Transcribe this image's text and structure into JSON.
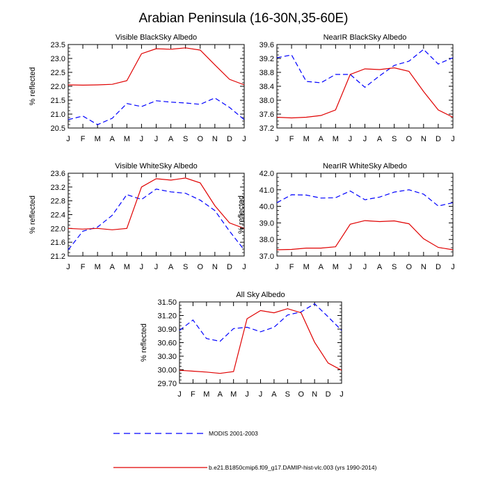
{
  "title": "Arabian Peninsula (16-30N,35-60E)",
  "colors": {
    "modis": "#0000ff",
    "model": "#e00000"
  },
  "legend": {
    "modis_label": "MODIS 2001-2003",
    "model_label": "b.e21.B1850cmip6.f09_g17.DAMIP-hist-vlc.003 (yrs 1990-2014)"
  },
  "chart_data": [
    {
      "type": "line",
      "title": "Visible BlackSky Albedo",
      "ylabel": "% reflected",
      "categories": [
        "J",
        "F",
        "M",
        "A",
        "M",
        "J",
        "J",
        "A",
        "S",
        "O",
        "N",
        "D",
        "J"
      ],
      "ylim": [
        20.5,
        23.5
      ],
      "yticks": [
        "20.5",
        "21.0",
        "21.5",
        "22.0",
        "22.5",
        "23.0",
        "23.5"
      ],
      "series": [
        {
          "name": "MODIS 2001-2003",
          "values": [
            20.8,
            20.93,
            20.62,
            20.85,
            21.38,
            21.27,
            21.48,
            21.43,
            21.4,
            21.35,
            21.58,
            21.24,
            20.8
          ]
        },
        {
          "name": "b.e21.B1850cmip6.f09_g17.DAMIP-hist-vlc.003 (yrs 1990-2014)",
          "values": [
            22.05,
            22.04,
            22.05,
            22.07,
            22.2,
            23.17,
            23.35,
            23.33,
            23.38,
            23.3,
            22.77,
            22.25,
            22.05
          ]
        }
      ]
    },
    {
      "type": "line",
      "title": "NearIR BlackSky Albedo",
      "ylabel": "",
      "categories": [
        "J",
        "F",
        "M",
        "A",
        "M",
        "J",
        "J",
        "A",
        "S",
        "O",
        "N",
        "D",
        "J"
      ],
      "ylim": [
        37.2,
        39.6
      ],
      "yticks": [
        "37.2",
        "37.6",
        "38.0",
        "38.4",
        "38.8",
        "39.2",
        "39.6"
      ],
      "series": [
        {
          "name": "MODIS 2001-2003",
          "values": [
            39.22,
            39.3,
            38.54,
            38.5,
            38.74,
            38.74,
            38.37,
            38.7,
            39.0,
            39.12,
            39.46,
            39.04,
            39.22
          ]
        },
        {
          "name": "b.e21.B1850cmip6.f09_g17.DAMIP-hist-vlc.003 (yrs 1990-2014)",
          "values": [
            37.51,
            37.49,
            37.51,
            37.56,
            37.72,
            38.74,
            38.9,
            38.88,
            38.93,
            38.83,
            38.25,
            37.72,
            37.51
          ]
        }
      ]
    },
    {
      "type": "line",
      "title": "Visible WhiteSky Albedo",
      "ylabel": "% reflected",
      "categories": [
        "J",
        "F",
        "M",
        "A",
        "M",
        "J",
        "J",
        "A",
        "S",
        "O",
        "N",
        "D",
        "J"
      ],
      "ylim": [
        21.2,
        23.6
      ],
      "yticks": [
        "21.2",
        "21.6",
        "22.0",
        "22.4",
        "22.8",
        "23.2",
        "23.6"
      ],
      "series": [
        {
          "name": "MODIS 2001-2003",
          "values": [
            21.38,
            21.92,
            22.04,
            22.38,
            22.98,
            22.84,
            23.14,
            23.06,
            23.02,
            22.82,
            22.52,
            21.92,
            21.38
          ]
        },
        {
          "name": "b.e21.B1850cmip6.f09_g17.DAMIP-hist-vlc.003 (yrs 1990-2014)",
          "values": [
            22.0,
            21.98,
            22.0,
            21.96,
            22.0,
            23.2,
            23.44,
            23.4,
            23.46,
            23.32,
            22.66,
            22.16,
            22.0
          ]
        }
      ]
    },
    {
      "type": "line",
      "title": "NearIR WhiteSky Albedo",
      "ylabel": "% reflected",
      "categories": [
        "J",
        "F",
        "M",
        "A",
        "M",
        "J",
        "J",
        "A",
        "S",
        "O",
        "N",
        "D",
        "J"
      ],
      "ylim": [
        37.0,
        42.0
      ],
      "yticks": [
        "37.0",
        "38.0",
        "39.0",
        "40.0",
        "41.0",
        "42.0"
      ],
      "series": [
        {
          "name": "MODIS 2001-2003",
          "values": [
            40.22,
            40.7,
            40.68,
            40.5,
            40.52,
            40.93,
            40.4,
            40.56,
            40.86,
            41.0,
            40.74,
            40.02,
            40.22
          ]
        },
        {
          "name": "b.e21.B1850cmip6.f09_g17.DAMIP-hist-vlc.003 (yrs 1990-2014)",
          "values": [
            37.38,
            37.4,
            37.48,
            37.48,
            37.56,
            38.92,
            39.14,
            39.08,
            39.12,
            38.95,
            38.04,
            37.52,
            37.38
          ]
        }
      ]
    },
    {
      "type": "line",
      "title": "All Sky Albedo",
      "ylabel": "% reflected",
      "categories": [
        "J",
        "F",
        "M",
        "A",
        "M",
        "J",
        "J",
        "A",
        "S",
        "O",
        "N",
        "D",
        "J"
      ],
      "ylim": [
        29.7,
        31.5
      ],
      "yticks": [
        "29.70",
        "30.00",
        "30.30",
        "30.60",
        "30.90",
        "31.20",
        "31.50"
      ],
      "series": [
        {
          "name": "MODIS 2001-2003",
          "values": [
            30.87,
            31.1,
            30.69,
            30.63,
            30.91,
            30.94,
            30.84,
            30.94,
            31.21,
            31.28,
            31.46,
            31.17,
            30.87
          ]
        },
        {
          "name": "b.e21.B1850cmip6.f09_g17.DAMIP-hist-vlc.003 (yrs 1990-2014)",
          "values": [
            29.99,
            29.97,
            29.95,
            29.92,
            29.96,
            31.13,
            31.31,
            31.26,
            31.35,
            31.26,
            30.61,
            30.15,
            29.99
          ]
        }
      ]
    }
  ]
}
